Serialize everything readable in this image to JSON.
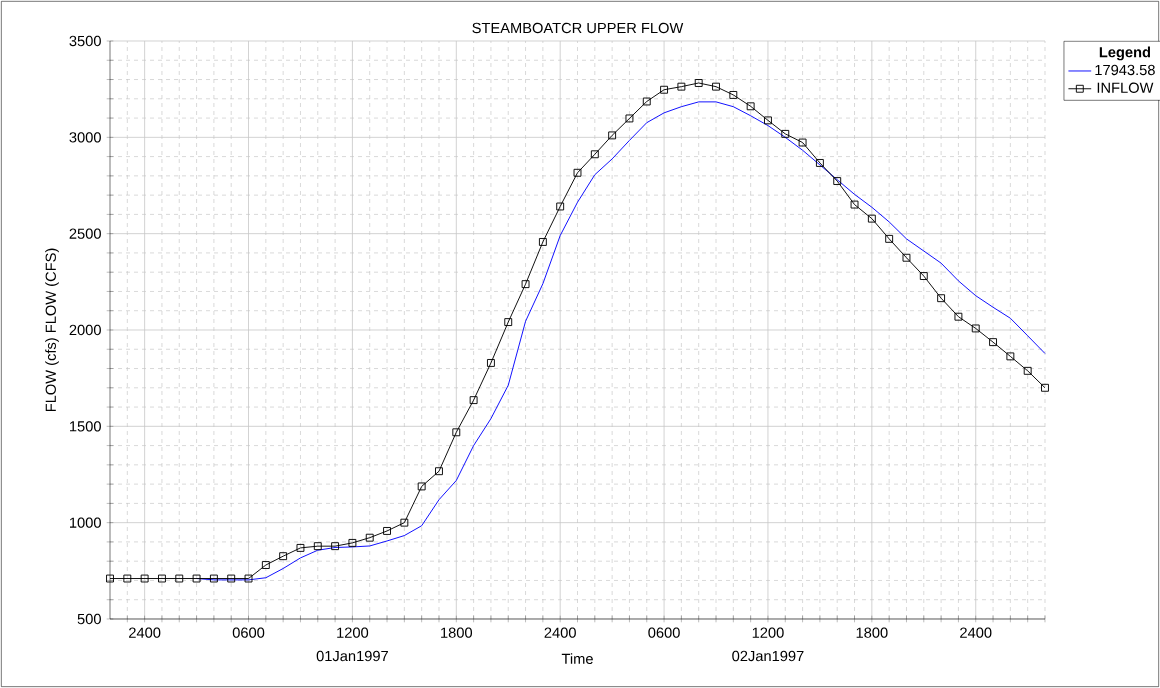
{
  "chart_data": {
    "type": "line",
    "title": "STEAMBOATCR UPPER FLOW",
    "xlabel": "Time",
    "ylabel": "FLOW (cfs) FLOW (CFS)",
    "legend_title": "Legend",
    "legend": "top right",
    "grid": true,
    "categories": [
      null,
      null,
      "2400",
      null,
      null,
      null,
      null,
      null,
      "0600",
      null,
      null,
      null,
      null,
      null,
      "1200",
      null,
      null,
      null,
      null,
      null,
      "1800",
      null,
      null,
      null,
      null,
      null,
      "2400",
      null,
      null,
      null,
      null,
      null,
      "0600",
      null,
      null,
      null,
      null,
      null,
      "1200",
      null,
      null,
      null,
      null,
      null,
      "1800",
      null,
      null,
      null,
      null,
      null,
      "2400",
      null,
      null,
      null,
      null
    ],
    "ylim": [
      500,
      3500
    ],
    "yticks": [
      500,
      1000,
      1500,
      2000,
      2500,
      3000,
      3500
    ],
    "annotations": [
      "01Jan1997",
      "02Jan1997"
    ],
    "series": [
      {
        "name": "17943.58",
        "color": "#0000ff",
        "marker": "none",
        "values": [
          null,
          null,
          null,
          null,
          null,
          710,
          703,
          703,
          703,
          714,
          762,
          817,
          857,
          871,
          874,
          879,
          905,
          933,
          984,
          1119,
          1219,
          1400,
          1540,
          1713,
          2045,
          2240,
          2490,
          2663,
          2806,
          2888,
          2984,
          3076,
          3127,
          3159,
          3184,
          3184,
          3159,
          3112,
          3061,
          3000,
          2933,
          2857,
          2780,
          2704,
          2637,
          2561,
          2473,
          2410,
          2347,
          2255,
          2178,
          2118,
          2061,
          1970,
          1878
        ]
      },
      {
        "name": "INFLOW",
        "color": "#000000",
        "marker": "square",
        "values": [
          710,
          710,
          710,
          710,
          710,
          710,
          710,
          710,
          710,
          780,
          826,
          869,
          878,
          878,
          895,
          922,
          957,
          1000,
          1188,
          1267,
          1469,
          1636,
          1829,
          2041,
          2238,
          2457,
          2641,
          2816,
          2912,
          3010,
          3098,
          3186,
          3247,
          3263,
          3282,
          3263,
          3220,
          3161,
          3088,
          3018,
          2973,
          2867,
          2773,
          2651,
          2578,
          2473,
          2375,
          2280,
          2165,
          2069,
          2008,
          1937,
          1863,
          1788,
          1700
        ]
      }
    ]
  }
}
